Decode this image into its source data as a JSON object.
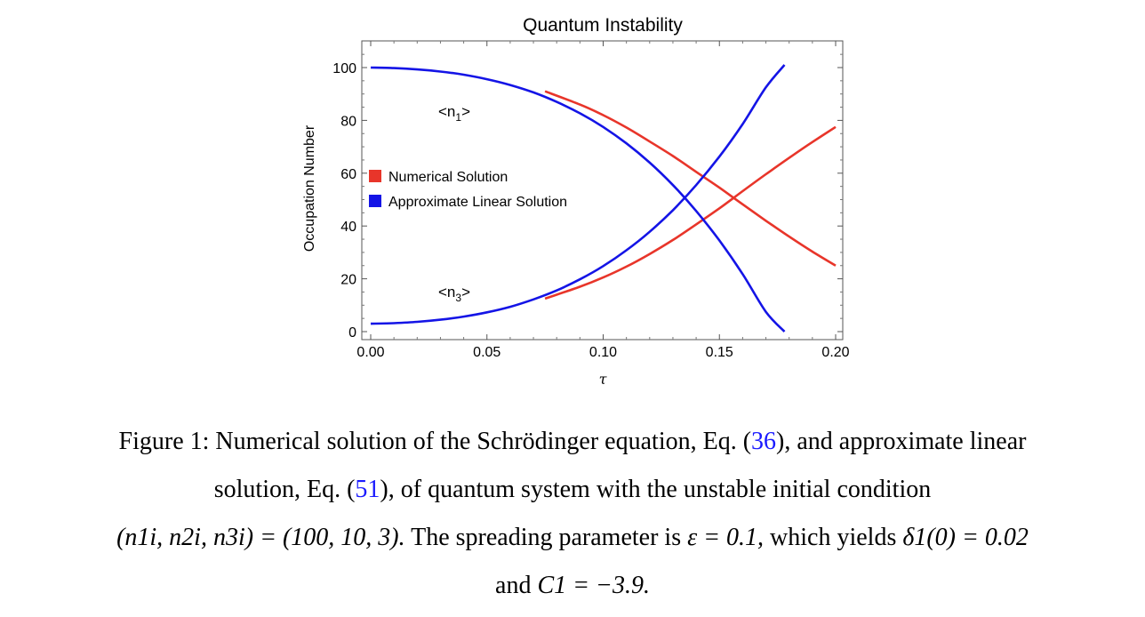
{
  "chart_data": {
    "type": "line",
    "title": "Quantum Instability",
    "xlabel": "τ",
    "ylabel": "Occupation Number",
    "xlim": [
      0,
      0.2
    ],
    "ylim": [
      0,
      110
    ],
    "xticks": [
      "0.00",
      "0.05",
      "0.10",
      "0.15",
      "0.20"
    ],
    "xtick_values": [
      0,
      0.05,
      0.1,
      0.15,
      0.2
    ],
    "yticks": [
      "0",
      "20",
      "40",
      "60",
      "80",
      "100"
    ],
    "ytick_values": [
      0,
      20,
      40,
      60,
      80,
      100
    ],
    "grid": false,
    "legend_position": "middle-left",
    "legend": [
      {
        "name": "Numerical Solution",
        "color": "#e8352a"
      },
      {
        "name": "Approximate Linear Solution",
        "color": "#1414e6"
      }
    ],
    "annotations": [
      {
        "text": "<n1>",
        "base": "<n",
        "sub": "1",
        "end": ">",
        "x": 0.045,
        "y": 82
      },
      {
        "text": "<n3>",
        "base": "<n",
        "sub": "3",
        "end": ">",
        "x": 0.045,
        "y": 15
      }
    ],
    "series": [
      {
        "name": "Numerical Solution",
        "label": "n1",
        "color": "#e8352a",
        "x": [
          0.075,
          0.09,
          0.1,
          0.11,
          0.12,
          0.13,
          0.14,
          0.15,
          0.16,
          0.17,
          0.18,
          0.19,
          0.2
        ],
        "y": [
          91.0,
          86.0,
          82.0,
          77.3,
          72.0,
          66.5,
          60.5,
          54.5,
          48.2,
          42.0,
          36.0,
          30.3,
          25.0
        ]
      },
      {
        "name": "Numerical Solution",
        "label": "n3",
        "color": "#e8352a",
        "x": [
          0.075,
          0.09,
          0.1,
          0.11,
          0.12,
          0.13,
          0.14,
          0.15,
          0.16,
          0.17,
          0.18,
          0.19,
          0.2
        ],
        "y": [
          12.5,
          17.0,
          20.5,
          24.6,
          29.4,
          34.7,
          40.6,
          46.7,
          53.2,
          59.6,
          65.8,
          71.8,
          77.5
        ]
      },
      {
        "name": "Approximate Linear Solution",
        "label": "n1",
        "color": "#1414e6",
        "x": [
          0.0,
          0.01,
          0.02,
          0.03,
          0.04,
          0.05,
          0.06,
          0.07,
          0.08,
          0.09,
          0.1,
          0.11,
          0.12,
          0.13,
          0.14,
          0.15,
          0.16,
          0.17,
          0.178
        ],
        "y": [
          100.0,
          99.8,
          99.3,
          98.5,
          97.3,
          95.6,
          93.4,
          90.6,
          87.0,
          82.7,
          77.5,
          71.3,
          64.0,
          55.5,
          45.7,
          34.5,
          21.8,
          7.5,
          0.0
        ]
      },
      {
        "name": "Approximate Linear Solution",
        "label": "n3",
        "color": "#1414e6",
        "x": [
          0.0,
          0.01,
          0.02,
          0.03,
          0.04,
          0.05,
          0.06,
          0.07,
          0.08,
          0.09,
          0.1,
          0.11,
          0.12,
          0.13,
          0.14,
          0.15,
          0.16,
          0.17,
          0.178
        ],
        "y": [
          3.0,
          3.2,
          3.7,
          4.5,
          5.7,
          7.3,
          9.4,
          12.2,
          15.6,
          19.8,
          24.8,
          30.8,
          37.8,
          46.0,
          55.5,
          66.3,
          78.6,
          92.5,
          101.0
        ]
      }
    ]
  },
  "caption": {
    "line1_a": "Figure 1: Numerical solution of the Schrödinger equation, Eq. (",
    "ref1": "36",
    "line1_b": "), and approximate linear",
    "line2_a": "solution, Eq. (",
    "ref2": "51",
    "line2_b": "), of quantum system with the unstable initial condition",
    "line3_math1": "(n1i, n2i, n3i) = (100, 10, 3).",
    "line3_text": " The spreading parameter is ",
    "line3_math2": "ε = 0.1,",
    "line3_text2": " which yields ",
    "line3_math3": "δ1(0) = 0.02",
    "line4_text": "and ",
    "line4_math": "C1 = −3.9."
  }
}
